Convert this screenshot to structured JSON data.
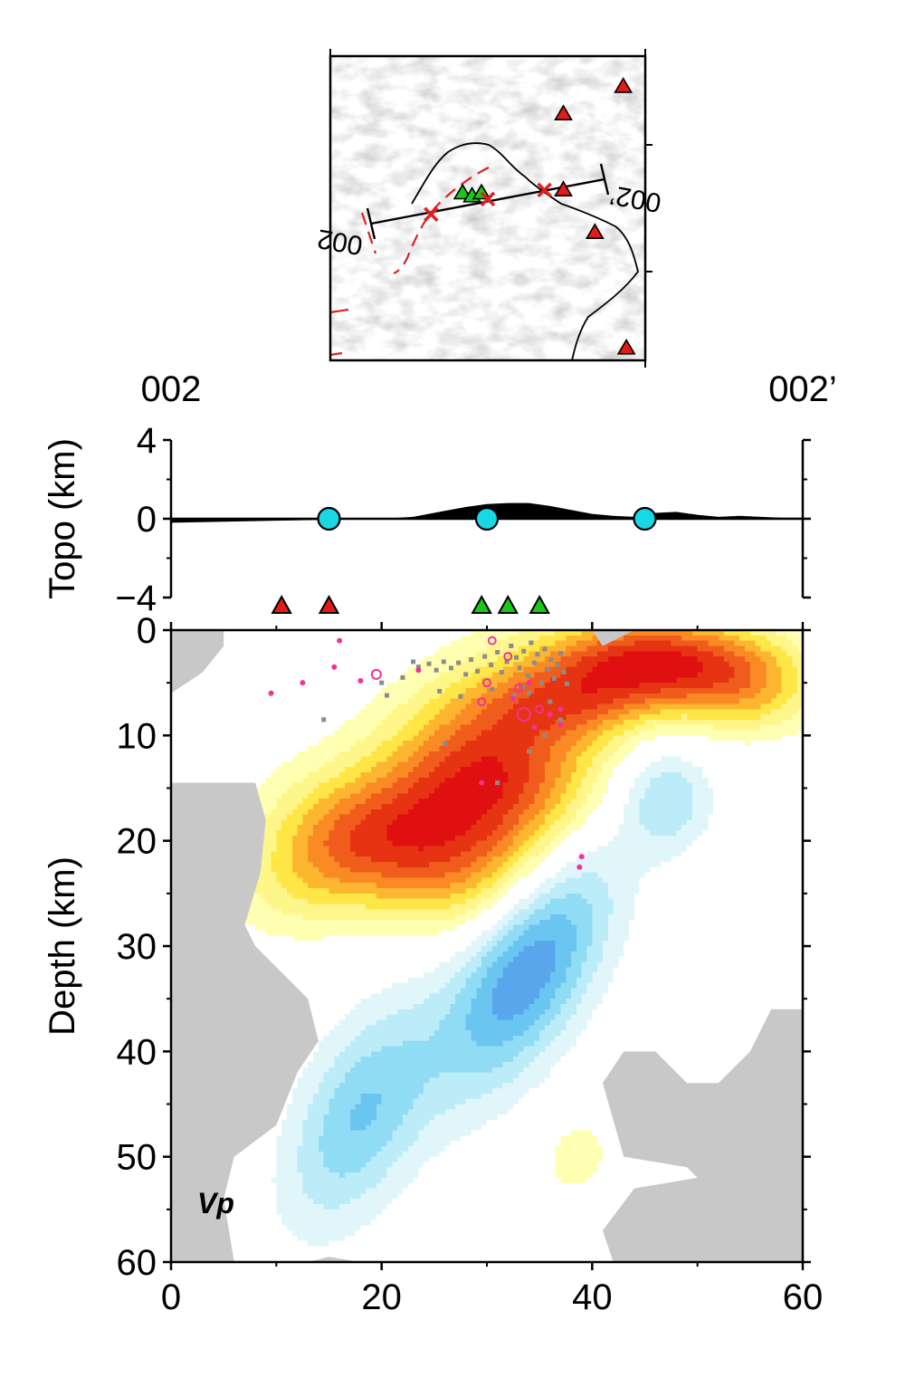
{
  "inset_map": {
    "profile_start_label": "002",
    "profile_end_label": "002’",
    "shaded_relief": "hillshade",
    "profile_line_color": "#000000",
    "fault_color": "#e02020",
    "coast_color": "#000000",
    "markers": [
      {
        "kind": "red-volcano",
        "u": 0.93,
        "v": 0.1
      },
      {
        "kind": "red-volcano",
        "u": 0.74,
        "v": 0.19
      },
      {
        "kind": "red-volcano",
        "u": 0.74,
        "v": 0.44
      },
      {
        "kind": "red-volcano",
        "u": 0.84,
        "v": 0.58
      },
      {
        "kind": "red-volcano",
        "u": 0.94,
        "v": 0.96
      },
      {
        "kind": "green-volcano",
        "u": 0.42,
        "v": 0.45
      },
      {
        "kind": "green-volcano",
        "u": 0.45,
        "v": 0.46
      },
      {
        "kind": "green-volcano",
        "u": 0.48,
        "v": 0.45
      },
      {
        "kind": "red-cross",
        "u": 0.32,
        "v": 0.52
      },
      {
        "kind": "red-cross",
        "u": 0.5,
        "v": 0.47
      },
      {
        "kind": "red-cross",
        "u": 0.68,
        "v": 0.44
      }
    ]
  },
  "profile_labels": {
    "left": "002",
    "right": "002’"
  },
  "chart_data": [
    {
      "type": "area",
      "panel": "topography",
      "ylabel": "Topo (km)",
      "xlim": [
        0,
        60
      ],
      "ylim": [
        -4,
        4
      ],
      "yticks": [
        4,
        0,
        -4
      ],
      "ytick_labels": [
        "4",
        "0",
        "−4"
      ],
      "x": [
        0,
        5,
        10,
        15,
        20,
        23,
        26,
        28,
        30,
        32,
        34,
        36,
        38,
        40,
        42,
        44,
        46,
        48,
        50,
        52,
        54,
        56,
        58,
        60
      ],
      "topo": [
        -0.2,
        -0.15,
        -0.1,
        -0.05,
        0.0,
        0.1,
        0.4,
        0.6,
        0.75,
        0.8,
        0.8,
        0.65,
        0.45,
        0.25,
        0.15,
        0.1,
        0.3,
        0.35,
        0.2,
        0.1,
        0.15,
        0.1,
        0.05,
        0.05
      ],
      "fill_color": "#000000",
      "zero_line_color": "#000000",
      "circles": {
        "x": [
          15,
          30,
          45
        ],
        "y": 0,
        "color": "#19d7e3"
      }
    },
    {
      "type": "scatter",
      "panel": "stations",
      "stations": [
        {
          "x": 10.5,
          "color": "#e11b1b"
        },
        {
          "x": 15.0,
          "color": "#e11b1b"
        },
        {
          "x": 29.5,
          "color": "#19c819"
        },
        {
          "x": 32.0,
          "color": "#19c819"
        },
        {
          "x": 35.0,
          "color": "#19c819"
        }
      ]
    },
    {
      "type": "heatmap",
      "panel": "vp-cross-section",
      "label": "Vp",
      "xlabel": "",
      "ylabel": "Depth (km)",
      "xlim": [
        0,
        60
      ],
      "ylim": [
        0,
        60
      ],
      "xticks": [
        0,
        20,
        40,
        60
      ],
      "yticks": [
        0,
        10,
        20,
        30,
        40,
        50,
        60
      ],
      "no_resolution_color": "#c8c8c8",
      "colorscale": {
        "positive": [
          "#ffffb2",
          "#fff68a",
          "#fde645",
          "#fdb630",
          "#f98a24",
          "#f05c1c",
          "#e63312",
          "#e01010"
        ],
        "negative": [
          "#e0f6fb",
          "#bcecf8",
          "#8fdcf4",
          "#6ac6f1",
          "#5aa6ec",
          "#4d88e6"
        ]
      },
      "anomalies": [
        {
          "x": 30.0,
          "depth": 14.0,
          "amplitude": 8,
          "sx": 7.5,
          "sy": 6.0,
          "rot": -25
        },
        {
          "x": 22.0,
          "depth": 21.0,
          "amplitude": 4,
          "sx": 8.0,
          "sy": 4.5,
          "rot": 20
        },
        {
          "x": 14.0,
          "depth": 22.0,
          "amplitude": 3,
          "sx": 6.0,
          "sy": 4.0,
          "rot": -30
        },
        {
          "x": 46.0,
          "depth": 3.0,
          "amplitude": 8,
          "sx": 7.5,
          "sy": 3.0,
          "rot": 0
        },
        {
          "x": 38.0,
          "depth": 7.0,
          "amplitude": 3,
          "sx": 6.0,
          "sy": 2.5,
          "rot": 0
        },
        {
          "x": 55.0,
          "depth": 6.0,
          "amplitude": 3,
          "sx": 4.5,
          "sy": 3.0,
          "rot": 0
        },
        {
          "x": 47.0,
          "depth": 16.0,
          "amplitude": -3,
          "sx": 3.0,
          "sy": 3.5,
          "rot": 0
        },
        {
          "x": 34.0,
          "depth": 32.0,
          "amplitude": -6,
          "sx": 4.0,
          "sy": 9.0,
          "rot": 30
        },
        {
          "x": 18.0,
          "depth": 46.0,
          "amplitude": -4,
          "sx": 4.0,
          "sy": 8.0,
          "rot": 25
        },
        {
          "x": 38.5,
          "depth": 50.0,
          "amplitude": 1.5,
          "sx": 2.5,
          "sy": 3.0,
          "rot": 20
        }
      ],
      "no_resolution_regions": [
        [
          [
            0,
            0
          ],
          [
            5,
            0
          ],
          [
            5,
            1.5
          ],
          [
            3,
            4
          ],
          [
            0,
            6
          ]
        ],
        [
          [
            0,
            14.5
          ],
          [
            8,
            14.5
          ],
          [
            9,
            18
          ],
          [
            8.5,
            23
          ],
          [
            7,
            28
          ],
          [
            8,
            30
          ],
          [
            11,
            33
          ],
          [
            13,
            35
          ],
          [
            14,
            39
          ],
          [
            12,
            42
          ],
          [
            10,
            47
          ],
          [
            6,
            50
          ],
          [
            5,
            54
          ],
          [
            6,
            60
          ],
          [
            0,
            60
          ]
        ],
        [
          [
            13,
            60
          ],
          [
            15,
            59.5
          ],
          [
            18,
            60
          ]
        ],
        [
          [
            40,
            0
          ],
          [
            44,
            0
          ],
          [
            41,
            1.5
          ]
        ],
        [
          [
            41,
            43
          ],
          [
            43,
            40
          ],
          [
            46,
            40
          ],
          [
            49,
            43
          ],
          [
            52,
            43
          ],
          [
            55,
            40
          ],
          [
            57,
            36
          ],
          [
            60,
            36
          ],
          [
            60,
            60
          ],
          [
            42,
            60
          ],
          [
            41,
            57
          ],
          [
            44,
            53
          ],
          [
            50,
            52
          ],
          [
            49,
            51
          ],
          [
            43,
            50
          ]
        ]
      ],
      "earthquakes_gray": [
        {
          "x": 23.0,
          "y": 3.0
        },
        {
          "x": 23.5,
          "y": 3.5
        },
        {
          "x": 24.5,
          "y": 3.2
        },
        {
          "x": 25.2,
          "y": 3.8
        },
        {
          "x": 25.9,
          "y": 3.0
        },
        {
          "x": 26.6,
          "y": 3.6
        },
        {
          "x": 27.3,
          "y": 3.1
        },
        {
          "x": 28.0,
          "y": 4.2
        },
        {
          "x": 28.5,
          "y": 2.8
        },
        {
          "x": 29.1,
          "y": 3.9
        },
        {
          "x": 29.8,
          "y": 2.5
        },
        {
          "x": 30.4,
          "y": 3.3
        },
        {
          "x": 31.0,
          "y": 2.1
        },
        {
          "x": 31.4,
          "y": 4.0
        },
        {
          "x": 31.9,
          "y": 3.0
        },
        {
          "x": 32.3,
          "y": 1.5
        },
        {
          "x": 32.8,
          "y": 2.6
        },
        {
          "x": 33.1,
          "y": 3.6
        },
        {
          "x": 33.5,
          "y": 2.0
        },
        {
          "x": 33.9,
          "y": 4.3
        },
        {
          "x": 34.2,
          "y": 1.2
        },
        {
          "x": 34.5,
          "y": 3.1
        },
        {
          "x": 34.8,
          "y": 2.3
        },
        {
          "x": 35.2,
          "y": 5.0
        },
        {
          "x": 35.5,
          "y": 1.8
        },
        {
          "x": 35.8,
          "y": 3.7
        },
        {
          "x": 36.1,
          "y": 2.8
        },
        {
          "x": 36.4,
          "y": 4.6
        },
        {
          "x": 36.7,
          "y": 3.3
        },
        {
          "x": 37.0,
          "y": 2.2
        },
        {
          "x": 37.3,
          "y": 4.0
        },
        {
          "x": 37.6,
          "y": 5.1
        },
        {
          "x": 34.0,
          "y": 6.0
        },
        {
          "x": 33.4,
          "y": 5.4
        },
        {
          "x": 32.6,
          "y": 6.2
        },
        {
          "x": 30.5,
          "y": 5.6
        },
        {
          "x": 27.5,
          "y": 6.3
        },
        {
          "x": 25.5,
          "y": 5.8
        },
        {
          "x": 22.0,
          "y": 4.5
        },
        {
          "x": 20.5,
          "y": 6.2
        },
        {
          "x": 14.5,
          "y": 8.5
        },
        {
          "x": 20.0,
          "y": 5.0
        },
        {
          "x": 26.0,
          "y": 10.8
        },
        {
          "x": 34.0,
          "y": 11.5
        },
        {
          "x": 35.5,
          "y": 10.0
        },
        {
          "x": 31.0,
          "y": 14.5
        },
        {
          "x": 37.0,
          "y": 8.5
        },
        {
          "x": 36.0,
          "y": 6.8
        }
      ],
      "earthquakes_pink": [
        {
          "x": 16.0,
          "y": 1.0,
          "r": 2
        },
        {
          "x": 9.5,
          "y": 6.0,
          "r": 2
        },
        {
          "x": 12.5,
          "y": 5.0,
          "r": 2
        },
        {
          "x": 15.5,
          "y": 3.5,
          "r": 2
        },
        {
          "x": 18.0,
          "y": 4.8,
          "r": 2
        },
        {
          "x": 19.5,
          "y": 4.2,
          "r": 5
        },
        {
          "x": 23.5,
          "y": 3.8,
          "r": 2
        },
        {
          "x": 30.5,
          "y": 1.0,
          "r": 4
        },
        {
          "x": 32.0,
          "y": 2.5,
          "r": 4
        },
        {
          "x": 30.0,
          "y": 5.0,
          "r": 4
        },
        {
          "x": 33.0,
          "y": 5.5,
          "r": 4
        },
        {
          "x": 34.0,
          "y": 5.0,
          "r": 2
        },
        {
          "x": 32.5,
          "y": 6.5,
          "r": 2
        },
        {
          "x": 29.5,
          "y": 6.8,
          "r": 4
        },
        {
          "x": 33.5,
          "y": 8.0,
          "r": 7
        },
        {
          "x": 35.0,
          "y": 7.5,
          "r": 4
        },
        {
          "x": 36.0,
          "y": 8.0,
          "r": 2
        },
        {
          "x": 34.5,
          "y": 9.2,
          "r": 2
        },
        {
          "x": 37.0,
          "y": 7.5,
          "r": 2
        },
        {
          "x": 29.5,
          "y": 14.5,
          "r": 2
        },
        {
          "x": 39.0,
          "y": 21.5,
          "r": 2
        },
        {
          "x": 38.8,
          "y": 22.5,
          "r": 2
        },
        {
          "x": 37.0,
          "y": 9.0,
          "r": 2
        }
      ]
    }
  ]
}
